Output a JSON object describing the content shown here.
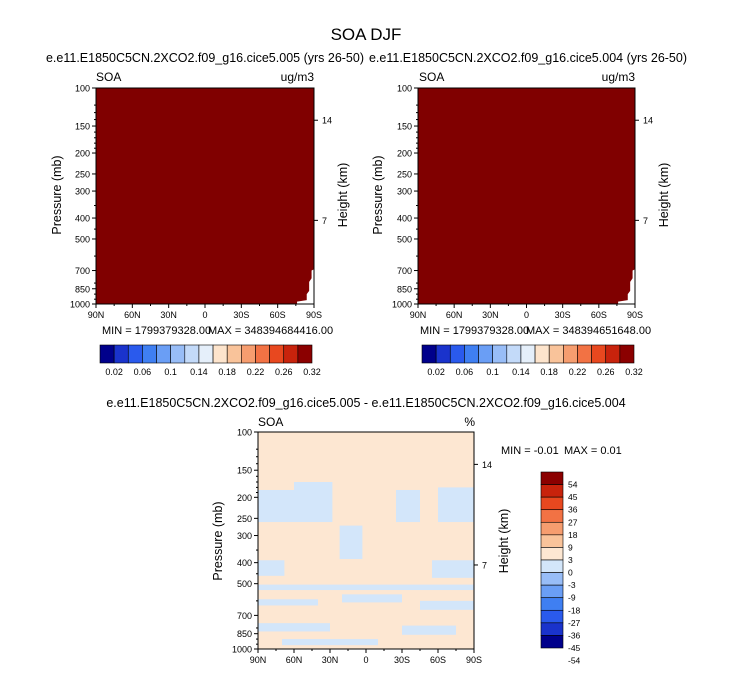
{
  "figure": {
    "title": "SOA DJF"
  },
  "colors": {
    "seq": [
      "#00008b",
      "#1a33cc",
      "#2a5aed",
      "#3f7ff2",
      "#6a9ef5",
      "#98bdf7",
      "#c3daf9",
      "#e5effa",
      "#fde4cc",
      "#f9c39a",
      "#f69d6f",
      "#f27244",
      "#e8481f",
      "#c8230c",
      "#8b0000"
    ],
    "diff": [
      "#00008b",
      "#1a33cc",
      "#2a5aed",
      "#3f7ff2",
      "#6a9ef5",
      "#98bdf7",
      "#d3e6fa",
      "#fde7d2",
      "#f9c39a",
      "#f69d6f",
      "#f27244",
      "#e8481f",
      "#c8230c",
      "#8b0000"
    ],
    "fill_max": "#800000",
    "diff_pos": "#fde7d2",
    "diff_neg": "#d3e6fa"
  },
  "chart_data": [
    {
      "type": "heatmap",
      "subtitle": "e.e11.E1850C5CN.2XCO2.f09_g16.cice5.005 (yrs 26-50)",
      "field_label": "SOA",
      "units": "ug/m3",
      "xlabel": "",
      "ylabel": "Pressure (mb)",
      "y2label": "Height (km)",
      "x_ticks": [
        "90N",
        "60N",
        "30N",
        "0",
        "30S",
        "60S",
        "90S"
      ],
      "x_lim": [
        90,
        -90
      ],
      "y_ticks": [
        100,
        150,
        200,
        250,
        300,
        400,
        500,
        700,
        850,
        1000
      ],
      "y_lim": [
        100,
        1000
      ],
      "y_scale": "log",
      "y2_ticks": [
        14,
        7
      ],
      "y2_tick_pressures": [
        141,
        410
      ],
      "min_label": "MIN = 1799379328.00",
      "max_label": "MAX = 348394684416.00",
      "colorbar_labels": [
        "0.02",
        "0.06",
        "0.1",
        "0.14",
        "0.18",
        "0.22",
        "0.26",
        "0.32"
      ],
      "fill": "all values above top contour (0.32)"
    },
    {
      "type": "heatmap",
      "subtitle": "e.e11.E1850C5CN.2XCO2.f09_g16.cice5.004 (yrs 26-50)",
      "field_label": "SOA",
      "units": "ug/m3",
      "xlabel": "",
      "ylabel": "Pressure (mb)",
      "y2label": "Height (km)",
      "x_ticks": [
        "90N",
        "60N",
        "30N",
        "0",
        "30S",
        "60S",
        "90S"
      ],
      "x_lim": [
        90,
        -90
      ],
      "y_ticks": [
        100,
        150,
        200,
        250,
        300,
        400,
        500,
        700,
        850,
        1000
      ],
      "y_lim": [
        100,
        1000
      ],
      "y_scale": "log",
      "y2_ticks": [
        14,
        7
      ],
      "y2_tick_pressures": [
        141,
        410
      ],
      "min_label": "MIN = 1799379328.00",
      "max_label": "MAX = 348394651648.00",
      "colorbar_labels": [
        "0.02",
        "0.06",
        "0.1",
        "0.14",
        "0.18",
        "0.22",
        "0.26",
        "0.32"
      ],
      "fill": "all values above top contour (0.32)"
    },
    {
      "type": "heatmap",
      "subtitle": "e.e11.E1850C5CN.2XCO2.f09_g16.cice5.005 - e.e11.E1850C5CN.2XCO2.f09_g16.cice5.004",
      "field_label": "SOA",
      "units": "%",
      "xlabel": "",
      "ylabel": "Pressure (mb)",
      "y2label": "Height (km)",
      "x_ticks": [
        "90N",
        "60N",
        "30N",
        "0",
        "30S",
        "60S",
        "90S"
      ],
      "x_lim": [
        90,
        -90
      ],
      "y_ticks": [
        100,
        150,
        200,
        250,
        300,
        400,
        500,
        700,
        850,
        1000
      ],
      "y_lim": [
        100,
        1000
      ],
      "y_scale": "log",
      "y2_ticks": [
        14,
        7
      ],
      "y2_tick_pressures": [
        141,
        410
      ],
      "min_label": "MIN =  -0.01",
      "max_label": "MAX =   0.01",
      "colorbar_labels": [
        "54",
        "45",
        "36",
        "27",
        "18",
        "9",
        "3",
        "0",
        "-3",
        "-9",
        "-18",
        "-27",
        "-36",
        "-45",
        "-54"
      ],
      "regions": [
        {
          "sign": "neg",
          "lat": [
            90,
            60
          ],
          "p": [
            185,
            260
          ]
        },
        {
          "sign": "neg",
          "lat": [
            60,
            28
          ],
          "p": [
            170,
            260
          ]
        },
        {
          "sign": "neg",
          "lat": [
            22,
            3
          ],
          "p": [
            270,
            385
          ]
        },
        {
          "sign": "neg",
          "lat": [
            -25,
            -45
          ],
          "p": [
            185,
            260
          ]
        },
        {
          "sign": "neg",
          "lat": [
            -60,
            -90
          ],
          "p": [
            180,
            260
          ]
        },
        {
          "sign": "neg",
          "lat": [
            90,
            68
          ],
          "p": [
            390,
            460
          ]
        },
        {
          "sign": "neg",
          "lat": [
            -55,
            -90
          ],
          "p": [
            390,
            470
          ]
        },
        {
          "sign": "neg",
          "lat": [
            90,
            -90
          ],
          "p": [
            505,
            535
          ]
        },
        {
          "sign": "neg",
          "lat": [
            90,
            40
          ],
          "p": [
            590,
            630
          ]
        },
        {
          "sign": "neg",
          "lat": [
            20,
            -30
          ],
          "p": [
            560,
            610
          ]
        },
        {
          "sign": "neg",
          "lat": [
            -45,
            -90
          ],
          "p": [
            600,
            660
          ]
        },
        {
          "sign": "neg",
          "lat": [
            90,
            30
          ],
          "p": [
            760,
            830
          ]
        },
        {
          "sign": "neg",
          "lat": [
            -30,
            -75
          ],
          "p": [
            780,
            860
          ]
        },
        {
          "sign": "neg",
          "lat": [
            70,
            -10
          ],
          "p": [
            900,
            960
          ]
        }
      ]
    }
  ]
}
